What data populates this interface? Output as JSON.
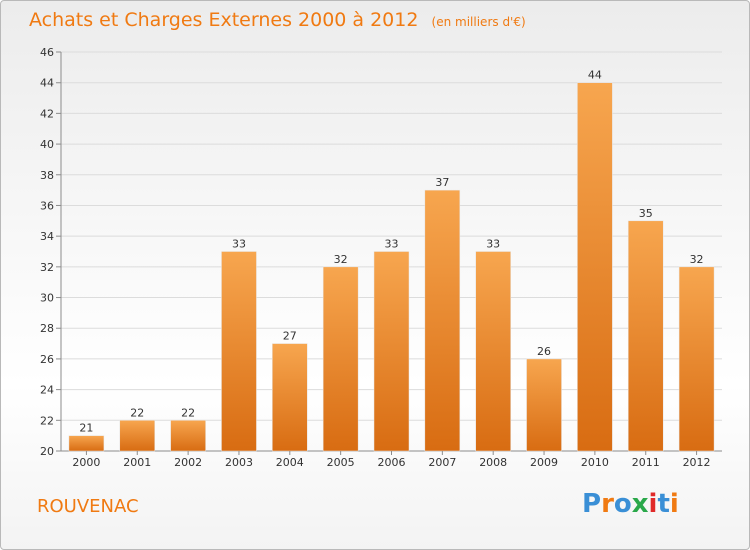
{
  "header": {
    "title": "Achats et Charges Externes 2000 à 2012",
    "subtitle": "(en milliers d'€)"
  },
  "footer": {
    "commune": "ROUVENAC",
    "logo_text": "Proxiti",
    "logo_colors": [
      "#3a8fd6",
      "#f07a12",
      "#3a8fd6",
      "#2aa84a",
      "#e02a2a",
      "#3a8fd6",
      "#f07a12"
    ]
  },
  "colors": {
    "bar_light": "#f7a64f",
    "bar_dark": "#d86c12",
    "accent": "#f07a12",
    "grid": "#dcdcdc",
    "axis": "#8c8c8c"
  },
  "chart_data": {
    "type": "bar",
    "categories": [
      "2000",
      "2001",
      "2002",
      "2003",
      "2004",
      "2005",
      "2006",
      "2007",
      "2008",
      "2009",
      "2010",
      "2011",
      "2012"
    ],
    "values": [
      21,
      22,
      22,
      33,
      27,
      32,
      33,
      37,
      33,
      26,
      44,
      35,
      32
    ],
    "data_labels": [
      "21",
      "22",
      "22",
      "33",
      "27",
      "32",
      "33",
      "37",
      "33",
      "26",
      "44",
      "35",
      "32"
    ],
    "ylim": [
      20,
      46
    ],
    "yticks": [
      20,
      22,
      24,
      26,
      28,
      30,
      32,
      34,
      36,
      38,
      40,
      42,
      44,
      46
    ],
    "grid": true,
    "legend": "none"
  }
}
